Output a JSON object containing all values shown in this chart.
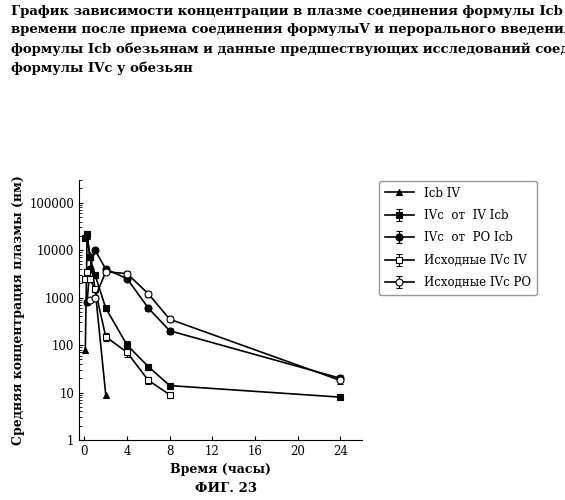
{
  "title_lines": [
    "График зависимости концентрации в плазме соединения формулы Icb и IVc от",
    "времени после приема соединения формулыV и перорального введения соединения",
    "формулы Icb обезьянам и данные предшествующих исследований соединения",
    "формулы IVc у обезьян"
  ],
  "xlabel": "Время (часы)",
  "ylabel": "Средняя концентрация плазмы (нм)",
  "fig_label": "ФИГ. 23",
  "xlim": [
    -0.5,
    26
  ],
  "ylim": [
    1,
    300000
  ],
  "xticks": [
    0,
    4,
    8,
    12,
    16,
    20,
    24
  ],
  "yticks": [
    1,
    10,
    100,
    1000,
    10000,
    100000
  ],
  "ytick_labels": [
    "1",
    "10",
    "100",
    "1000",
    "10000",
    "100000"
  ],
  "series": [
    {
      "label": "Icb IV",
      "x": [
        0.083,
        0.25,
        0.5,
        1,
        2
      ],
      "y": [
        80,
        20000,
        8000,
        1500,
        9
      ],
      "yerr_lo": [
        0,
        0,
        0,
        0,
        0
      ],
      "yerr_hi": [
        0,
        0,
        0,
        0,
        0
      ],
      "color": "#000000",
      "marker": "^",
      "marker_fill": "#000000",
      "linestyle": "-",
      "linewidth": 1.2,
      "markersize": 5
    },
    {
      "label": "IVc  от  IV Icb",
      "x": [
        0.083,
        0.25,
        0.5,
        1,
        2,
        4,
        6,
        8,
        24
      ],
      "y": [
        18000,
        22000,
        7000,
        3000,
        600,
        100,
        35,
        14,
        8
      ],
      "yerr_lo": [
        2000,
        3000,
        800,
        400,
        80,
        20,
        5,
        2,
        0.5
      ],
      "yerr_hi": [
        2000,
        3000,
        800,
        400,
        80,
        20,
        5,
        2,
        0.5
      ],
      "color": "#000000",
      "marker": "s",
      "marker_fill": "#000000",
      "linestyle": "-",
      "linewidth": 1.2,
      "markersize": 5
    },
    {
      "label": "IVc  от  PO Icb",
      "x": [
        0.25,
        0.5,
        1,
        2,
        4,
        6,
        8,
        24
      ],
      "y": [
        800,
        4000,
        10000,
        4000,
        2500,
        600,
        200,
        20
      ],
      "yerr_lo": [
        100,
        500,
        1000,
        500,
        300,
        80,
        30,
        3
      ],
      "yerr_hi": [
        100,
        500,
        1000,
        500,
        300,
        80,
        30,
        3
      ],
      "color": "#000000",
      "marker": "o",
      "marker_fill": "#000000",
      "linestyle": "-",
      "linewidth": 1.2,
      "markersize": 5
    },
    {
      "label": "Исходные IVc IV",
      "x": [
        0.083,
        0.25,
        0.5,
        1,
        2,
        4,
        6,
        8
      ],
      "y": [
        2500,
        3500,
        2500,
        1500,
        150,
        70,
        18,
        9
      ],
      "yerr_lo": [
        400,
        500,
        400,
        200,
        30,
        15,
        3,
        1
      ],
      "yerr_hi": [
        400,
        500,
        400,
        200,
        30,
        15,
        3,
        1
      ],
      "color": "#000000",
      "marker": "s",
      "marker_fill": "#ffffff",
      "linestyle": "-",
      "linewidth": 1.2,
      "markersize": 5
    },
    {
      "label": "Исходные IVc PO",
      "x": [
        0.5,
        1,
        2,
        4,
        6,
        8,
        24
      ],
      "y": [
        900,
        1000,
        3500,
        3200,
        1200,
        350,
        18
      ],
      "yerr_lo": [
        100,
        150,
        400,
        350,
        150,
        50,
        3
      ],
      "yerr_hi": [
        100,
        150,
        400,
        350,
        150,
        50,
        3
      ],
      "color": "#000000",
      "marker": "o",
      "marker_fill": "#ffffff",
      "linestyle": "-",
      "linewidth": 1.2,
      "markersize": 5
    }
  ],
  "background_color": "#ffffff",
  "title_fontsize": 9.5,
  "axis_label_fontsize": 9,
  "tick_fontsize": 8.5,
  "legend_fontsize": 8.5
}
